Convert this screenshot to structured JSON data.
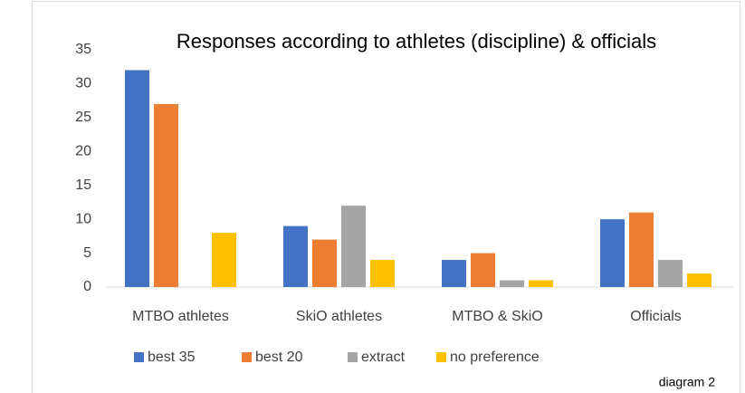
{
  "chart_data": {
    "type": "bar",
    "title": "Responses according to athletes (discipline)  & officials",
    "categories": [
      "MTBO athletes",
      "SkiO athletes",
      "MTBO & SkiO",
      "Officials"
    ],
    "series": [
      {
        "name": "best 35",
        "color": "#4472c4",
        "values": [
          32,
          9,
          4,
          10
        ]
      },
      {
        "name": "best 20",
        "color": "#ed7d31",
        "values": [
          27,
          7,
          5,
          11
        ]
      },
      {
        "name": "extract",
        "color": "#a5a5a5",
        "values": [
          0,
          12,
          1,
          4
        ]
      },
      {
        "name": "no preference",
        "color": "#ffc000",
        "values": [
          8,
          4,
          1,
          2
        ]
      }
    ],
    "ylim": [
      0,
      35
    ],
    "yticks": [
      0,
      5,
      10,
      15,
      20,
      25,
      30,
      35
    ],
    "grid": false,
    "legend": "bottom",
    "annotation": "diagram 2"
  }
}
